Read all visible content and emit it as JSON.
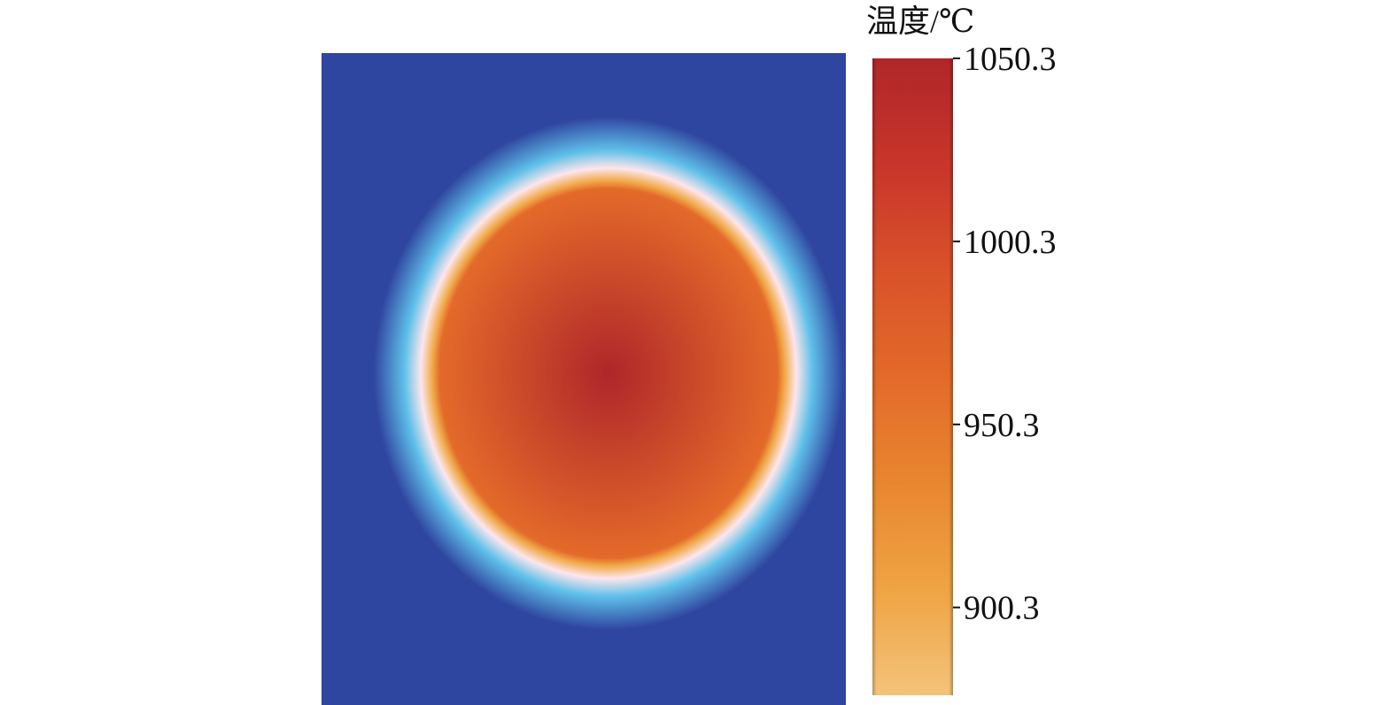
{
  "chart_data": {
    "type": "heatmap",
    "title": "",
    "field": {
      "background_color": "#2f46a0",
      "blob_shape": "ellipse",
      "center_color": "#b0262a",
      "edge_color": "#f0a847",
      "halo_inner_color": "#fde6ec",
      "halo_outer_color": "#5fc0ea"
    },
    "colorbar": {
      "title": "温度/℃",
      "min": 876.3,
      "max": 1050.3,
      "ticks": [
        1050.3,
        1000.3,
        950.3,
        900.3
      ],
      "tick_labels": [
        "1050.3",
        "1000.3",
        "950.3",
        "900.3"
      ],
      "colors_high_to_low": [
        "#b0262a",
        "#c8352a",
        "#d9522a",
        "#e36a2a",
        "#e8862f",
        "#eea443",
        "#f3c37a"
      ]
    }
  }
}
